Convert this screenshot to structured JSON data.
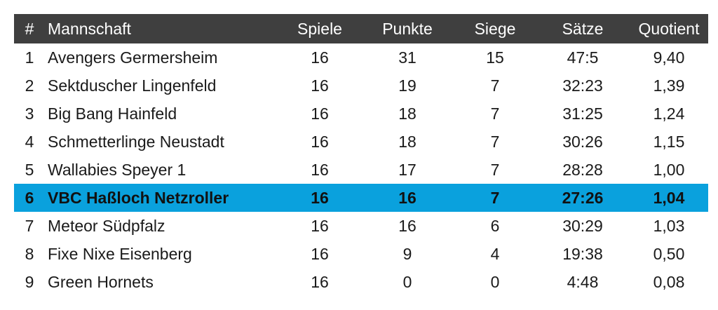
{
  "header": {
    "rank": "#",
    "team": "Mannschaft",
    "games": "Spiele",
    "points": "Punkte",
    "wins": "Siege",
    "sets": "Sätze",
    "quotient": "Quotient"
  },
  "rows": [
    {
      "rank": "1",
      "team": "Avengers Germersheim",
      "games": "16",
      "points": "31",
      "wins": "15",
      "sets": "47:5",
      "quotient": "9,40"
    },
    {
      "rank": "2",
      "team": "Sektduscher Lingenfeld",
      "games": "16",
      "points": "19",
      "wins": "7",
      "sets": "32:23",
      "quotient": "1,39"
    },
    {
      "rank": "3",
      "team": "Big Bang Hainfeld",
      "games": "16",
      "points": "18",
      "wins": "7",
      "sets": "31:25",
      "quotient": "1,24"
    },
    {
      "rank": "4",
      "team": "Schmetterlinge Neustadt",
      "games": "16",
      "points": "18",
      "wins": "7",
      "sets": "30:26",
      "quotient": "1,15"
    },
    {
      "rank": "5",
      "team": "Wallabies Speyer 1",
      "games": "16",
      "points": "17",
      "wins": "7",
      "sets": "28:28",
      "quotient": "1,00"
    },
    {
      "rank": "6",
      "team": "VBC Haßloch Netzroller",
      "games": "16",
      "points": "16",
      "wins": "7",
      "sets": "27:26",
      "quotient": "1,04"
    },
    {
      "rank": "7",
      "team": "Meteor Südpfalz",
      "games": "16",
      "points": "16",
      "wins": "6",
      "sets": "30:29",
      "quotient": "1,03"
    },
    {
      "rank": "8",
      "team": "Fixe Nixe Eisenberg",
      "games": "16",
      "points": "9",
      "wins": "4",
      "sets": "19:38",
      "quotient": "0,50"
    },
    {
      "rank": "9",
      "team": "Green Hornets",
      "games": "16",
      "points": "0",
      "wins": "0",
      "sets": "4:48",
      "quotient": "0,08"
    }
  ],
  "highlight_color": "#0aa1dd",
  "header_color": "#3f3f3f"
}
